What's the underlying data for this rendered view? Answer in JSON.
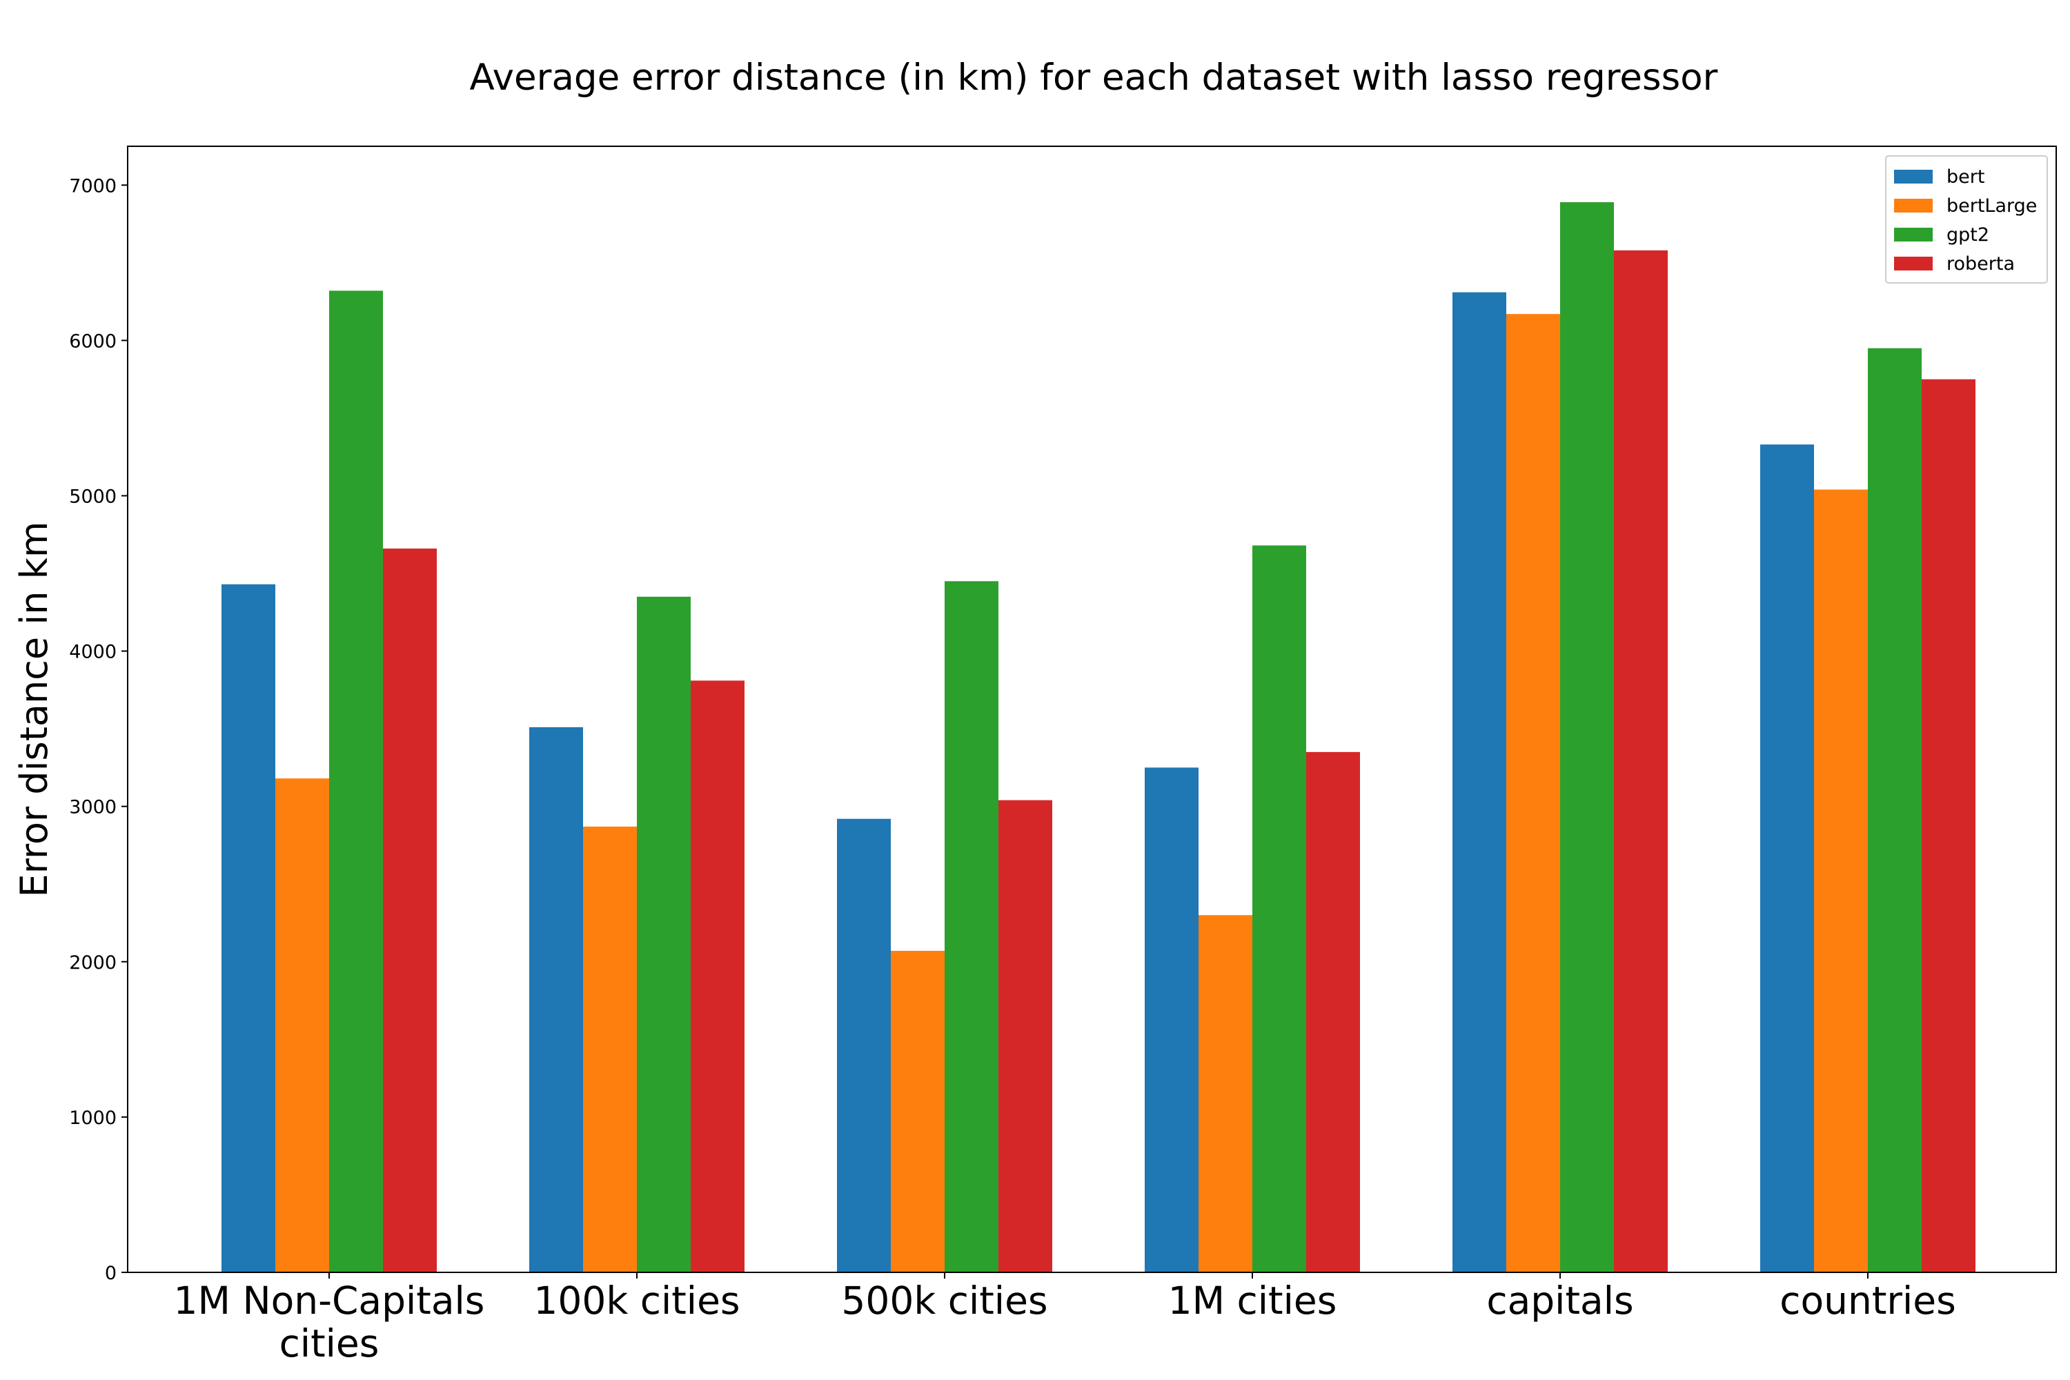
{
  "chart_data": {
    "type": "bar",
    "title": "Average error distance (in km) for each dataset with lasso regressor",
    "xlabel": "",
    "ylabel": "Error distance in km",
    "ylim": [
      0,
      7250
    ],
    "yticks": [
      0,
      1000,
      2000,
      3000,
      4000,
      5000,
      6000,
      7000
    ],
    "grid": false,
    "legend_position": "top-right",
    "categories": [
      "1M Non-Capitals cities",
      "100k cities",
      "500k cities",
      "1M cities",
      "capitals",
      "countries"
    ],
    "series": [
      {
        "name": "bert",
        "color": "#1f77b4",
        "values": [
          4430,
          3510,
          2920,
          3250,
          6310,
          5330
        ]
      },
      {
        "name": "bertLarge",
        "color": "#ff7f0e",
        "values": [
          3180,
          2870,
          2070,
          2300,
          6170,
          5040
        ]
      },
      {
        "name": "gpt2",
        "color": "#2ca02c",
        "values": [
          6320,
          4350,
          4450,
          4680,
          6890,
          5950
        ]
      },
      {
        "name": "roberta",
        "color": "#d62728",
        "values": [
          4660,
          3810,
          3040,
          3350,
          6580,
          5750
        ]
      }
    ]
  }
}
